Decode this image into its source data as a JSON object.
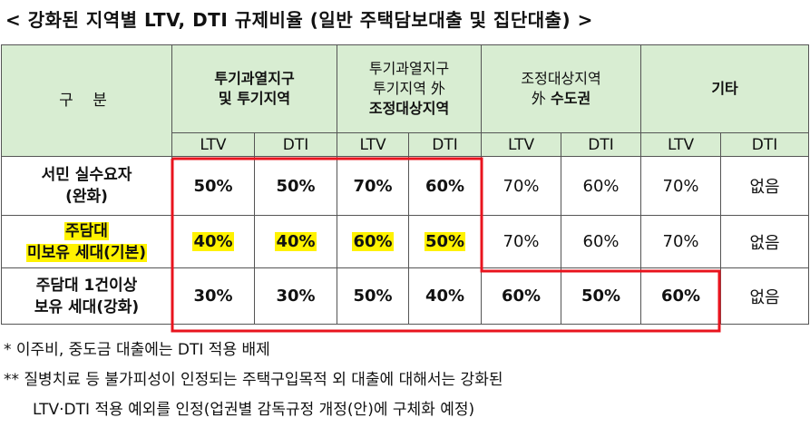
{
  "title": "< 강화된 지역별 LTV, DTI 규제비율 (일반 주택담보대출 및 집단대출) >",
  "header": {
    "gubun": "구 분",
    "col1": [
      "투기과열지구",
      "및 투기지역"
    ],
    "col2": [
      "투기과열지구",
      "투기지역 外",
      "조정대상지역"
    ],
    "col3": [
      "조정대상지역",
      "外 수도권"
    ],
    "col4": "기타",
    "ltv": "LTV",
    "dti": "DTI"
  },
  "rows": [
    {
      "label": [
        "서민 실수요자",
        "(완화)"
      ],
      "values": [
        "50%",
        "50%",
        "70%",
        "60%",
        "70%",
        "60%",
        "70%",
        "없음"
      ]
    },
    {
      "label": [
        "주담대",
        "미보유 세대(기본)"
      ],
      "values": [
        "40%",
        "40%",
        "60%",
        "50%",
        "70%",
        "60%",
        "70%",
        "없음"
      ]
    },
    {
      "label": [
        "주담대 1건이상",
        "보유 세대(강화)"
      ],
      "values": [
        "30%",
        "30%",
        "50%",
        "40%",
        "60%",
        "50%",
        "60%",
        "없음"
      ]
    }
  ],
  "notes": [
    "* 이주비, 중도금 대출에는 DTI 적용 배제",
    "** 질병치료 등 불가피성이 인정되는 주택구입목적 외 대출에 대해서는 강화된",
    "LTV·DTI 적용 예외를 인정(업권별 감독규정 개정(안)에 구체화 예정)"
  ],
  "colors": {
    "header_bg": "#d8edd2",
    "highlight": "#fff200",
    "outline_red": "#e8141e"
  }
}
